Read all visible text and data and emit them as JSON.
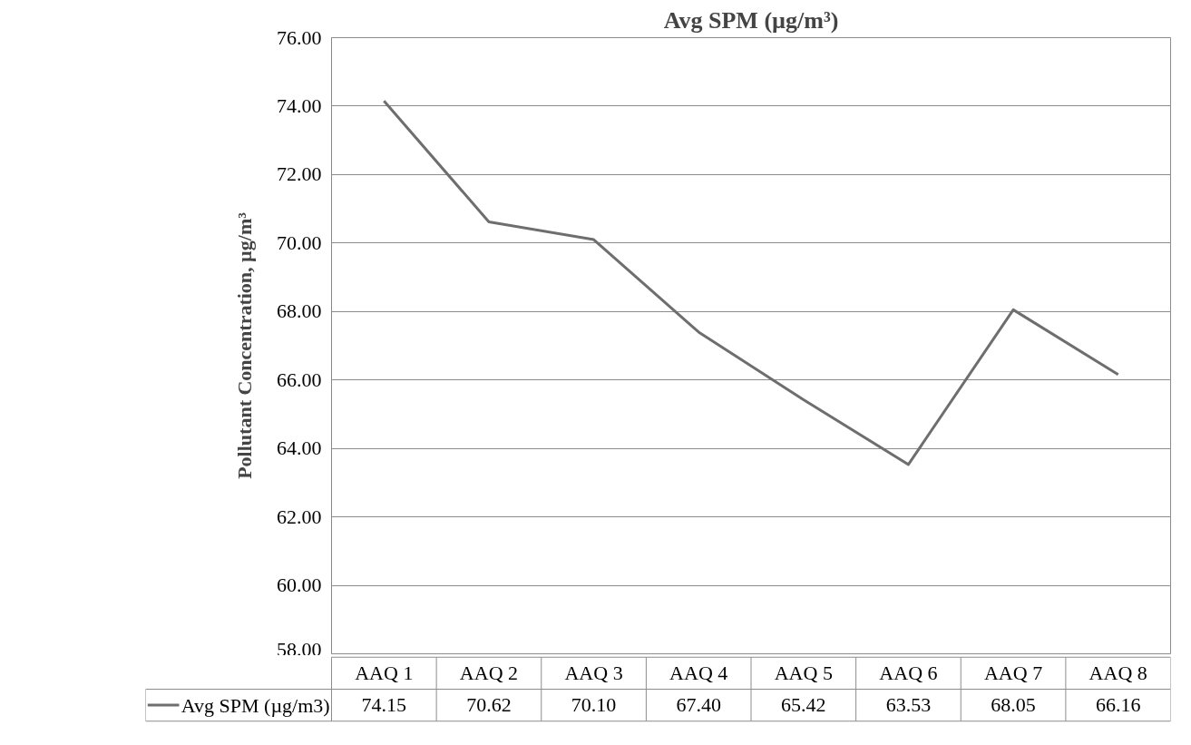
{
  "chart_data": {
    "type": "line",
    "title": "Avg SPM (µg/m³)",
    "ylabel": "Pollutant Concentration, µg/m³",
    "categories": [
      "AAQ 1",
      "AAQ 2",
      "AAQ 3",
      "AAQ 4",
      "AAQ 5",
      "AAQ 6",
      "AAQ 7",
      "AAQ 8"
    ],
    "series": [
      {
        "name": "Avg SPM (µg/m3)",
        "color": "#6e6e6e",
        "values": [
          74.15,
          70.62,
          70.1,
          67.4,
          65.42,
          63.53,
          68.05,
          66.16
        ],
        "value_labels": [
          "74.15",
          "70.62",
          "70.10",
          "67.40",
          "65.42",
          "63.53",
          "68.05",
          "66.16"
        ]
      }
    ],
    "ylim": [
      58,
      76
    ],
    "yticks": [
      {
        "value": 58,
        "label": "58.00"
      },
      {
        "value": 60,
        "label": "60.00"
      },
      {
        "value": 62,
        "label": "62.00"
      },
      {
        "value": 64,
        "label": "64.00"
      },
      {
        "value": 66,
        "label": "66.00"
      },
      {
        "value": 68,
        "label": "68.00"
      },
      {
        "value": 70,
        "label": "70.00"
      },
      {
        "value": 72,
        "label": "72.00"
      },
      {
        "value": 74,
        "label": "74.00"
      },
      {
        "value": 76,
        "label": "76.00"
      }
    ],
    "grid": "y",
    "legend": "bottom",
    "line_style": "solid"
  }
}
